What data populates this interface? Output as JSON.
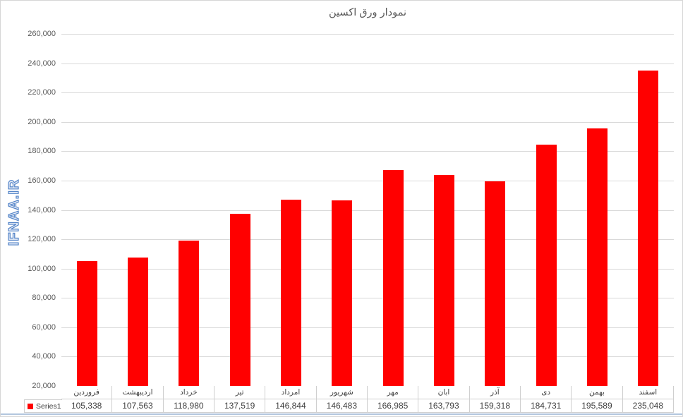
{
  "watermark_text": "IFNAA.IR",
  "chart_data": {
    "type": "bar",
    "title": "نمودار ورق اکسین",
    "categories": [
      "فروردین",
      "اردیبهشت",
      "خرداد",
      "تیر",
      "امرداد",
      "شهریور",
      "مهر",
      "ابان",
      "آذر",
      "دی",
      "بهمن",
      "اسفند"
    ],
    "series": [
      {
        "name": "Series1",
        "color": "#ff0000",
        "values": [
          105338,
          107563,
          118980,
          137519,
          146844,
          146483,
          166985,
          163793,
          159318,
          184731,
          195589,
          235048
        ]
      }
    ],
    "value_labels": [
      "105,338",
      "107,563",
      "118,980",
      "137,519",
      "146,844",
      "146,483",
      "166,985",
      "163,793",
      "159,318",
      "184,731",
      "195,589",
      "235,048"
    ],
    "xlabel": "",
    "ylabel": "",
    "ylim": [
      20000,
      260000
    ],
    "ytick_step": 20000,
    "ytick_labels_top_to_bottom": [
      "260,000",
      "240,000",
      "220,000",
      "200,000",
      "180,000",
      "160,000",
      "140,000",
      "120,000",
      "100,000",
      "80,000",
      "60,000",
      "40,000",
      "20,000"
    ],
    "grid": true,
    "legend_position": "bottom-left",
    "data_table_shown": true
  },
  "colors": {
    "bar": "#ff0000",
    "gridline": "#d9d9d9",
    "axis_text": "#595959",
    "table_text": "#3f3f3f",
    "table_border": "#cfcfcf",
    "watermark_stroke": "#5585c8",
    "bottom_line": "#b3c6de",
    "canvas_border": "#d6d6d6"
  }
}
